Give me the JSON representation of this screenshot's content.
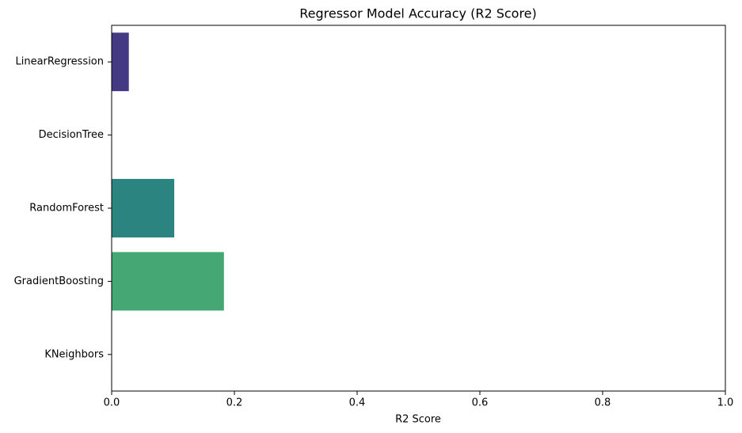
{
  "chart_data": {
    "type": "hbar",
    "title": "Regressor Model Accuracy (R2 Score)",
    "x_label": "R2 Score",
    "categories": [
      "LinearRegression",
      "DecisionTree",
      "RandomForest",
      "GradientBoosting",
      "KNeighbors"
    ],
    "values": [
      0.028,
      0,
      0.102,
      0.183,
      0
    ],
    "colors": [
      "#443a83",
      "#31688e",
      "#2c8480",
      "#45a874",
      "#8ed645"
    ],
    "xlim": [
      0,
      1
    ],
    "xticks": [
      {
        "value": 0,
        "label": "0.0"
      },
      0.2,
      0.4,
      0.6,
      0.8,
      {
        "value": 1,
        "label": "1.0"
      }
    ],
    "grid": false
  }
}
